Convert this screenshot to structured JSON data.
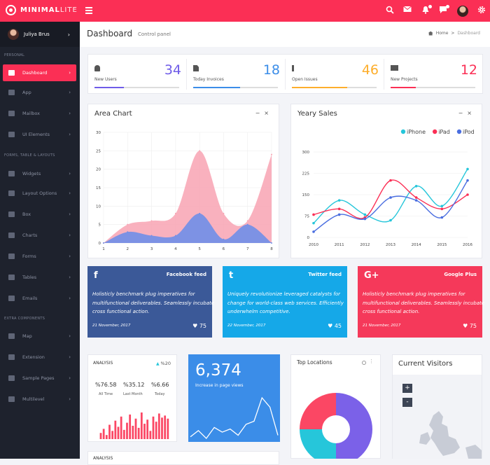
{
  "app": {
    "brand_strong": "MINIMAL",
    "brand_light": "LITE"
  },
  "topbar": {
    "icons": [
      "search-icon",
      "mail-icon",
      "bell-icon",
      "chat-icon",
      "avatar",
      "gear-icon"
    ]
  },
  "sidebar": {
    "user_name": "Juliya Brus",
    "sections": [
      "PERSONAL",
      "FORMS, TABLE & LAYOUTS",
      "EXTRA COMPONENTS"
    ],
    "items": [
      {
        "label": "Dashboard",
        "icon": "dashboard-icon",
        "active": true
      },
      {
        "label": "App",
        "icon": "grid-icon"
      },
      {
        "label": "Mailbox",
        "icon": "mail-icon"
      },
      {
        "label": "UI Elements",
        "icon": "monitor-icon"
      },
      {
        "label": "Widgets",
        "icon": "list-icon"
      },
      {
        "label": "Layout Options",
        "icon": "layout-icon"
      },
      {
        "label": "Box",
        "icon": "box-icon"
      },
      {
        "label": "Charts",
        "icon": "pie-icon"
      },
      {
        "label": "Forms",
        "icon": "edit-icon"
      },
      {
        "label": "Tables",
        "icon": "table-icon"
      },
      {
        "label": "Emails",
        "icon": "envelope-icon"
      },
      {
        "label": "Map",
        "icon": "map-icon"
      },
      {
        "label": "Extension",
        "icon": "plug-icon"
      },
      {
        "label": "Sample Pages",
        "icon": "file-icon"
      },
      {
        "label": "Multilevel",
        "icon": "share-icon"
      }
    ]
  },
  "header": {
    "title": "Dashboard",
    "subtitle": "Control panel",
    "breadcrumb_home": "Home",
    "breadcrumb_current": "Dashboard"
  },
  "stats": [
    {
      "label": "New Users",
      "value": "34",
      "color": "#6f5ce8",
      "progress": 0.35
    },
    {
      "label": "Today Invoices",
      "value": "18",
      "color": "#3b8de8",
      "progress": 0.55
    },
    {
      "label": "Open Issues",
      "value": "46",
      "color": "#fdae2c",
      "progress": 0.65
    },
    {
      "label": "New Projects",
      "value": "12",
      "color": "#fb2f55",
      "progress": 0.3
    }
  ],
  "area_chart_title": "Area Chart",
  "sales_chart_title": "Yeary Sales",
  "chart_data": [
    {
      "type": "area",
      "x": [
        1,
        2,
        3,
        4,
        5,
        6,
        7,
        8
      ],
      "ylim": [
        0,
        30
      ],
      "yticks": [
        0,
        5,
        10,
        15,
        20,
        25,
        30
      ],
      "series": [
        {
          "color": "#f8a3b3",
          "values": [
            0,
            5,
            6,
            8,
            25,
            8,
            6,
            24
          ]
        },
        {
          "color": "#6f8fe8",
          "values": [
            0,
            3,
            2,
            2,
            8,
            1,
            5,
            0
          ]
        }
      ]
    },
    {
      "type": "line",
      "x": [
        "2010",
        "2011",
        "2012",
        "2013",
        "2014",
        "2015",
        "2016"
      ],
      "ylim": [
        0,
        300
      ],
      "yticks": [
        0,
        75,
        150,
        225,
        300
      ],
      "series": [
        {
          "name": "iPhone",
          "color": "#26c6da",
          "values": [
            50,
            130,
            80,
            60,
            180,
            110,
            240
          ]
        },
        {
          "name": "iPad",
          "color": "#fb2f55",
          "values": [
            80,
            100,
            70,
            200,
            140,
            100,
            150
          ]
        },
        {
          "name": "iPod",
          "color": "#4a6ee0",
          "values": [
            20,
            80,
            65,
            140,
            130,
            70,
            200
          ]
        }
      ]
    }
  ],
  "social": [
    {
      "name": "Facebook feed",
      "logo": "f",
      "color": "#3b5998",
      "text": "Holisticly benchmark plug imperatives for multifunctional deliverables. Seamlessly incubate cross functional action.",
      "date": "21 November, 2017",
      "likes": "75"
    },
    {
      "name": "Twitter feed",
      "logo": "t",
      "color": "#15a8e8",
      "text": "Uniquely revolutionize leveraged catalysts for change for world-class web services. Efficiently underwhelm competitive.",
      "date": "22 November, 2017",
      "likes": "45"
    },
    {
      "name": "Google Plus",
      "logo": "G+",
      "color": "#f5395a",
      "text": "Holisticly benchmark plug imperatives for multifunctional deliverables. Seamlessly incubate cross functional action.",
      "date": "21 November, 2017",
      "likes": "75"
    }
  ],
  "analysis": {
    "title": "ANALYSIS",
    "change": "%20",
    "all_time": "%76.58",
    "all_time_label": "All Time",
    "last_month": "%35.12",
    "last_month_label": "Last Month",
    "today": "%6.66",
    "today_label": "Today",
    "bars": [
      6,
      10,
      4,
      14,
      8,
      18,
      12,
      22,
      9,
      16,
      24,
      13,
      20,
      11,
      26,
      15,
      19,
      8,
      22,
      17,
      25,
      21,
      23,
      20
    ],
    "footer_title": "ANALYSIS"
  },
  "pageviews": {
    "value": "6,374",
    "label": "Increase in page views",
    "line": [
      20,
      28,
      18,
      32,
      26,
      30,
      22,
      36,
      40,
      70,
      58,
      22
    ]
  },
  "locations": {
    "title": "Top Locations",
    "slices": [
      {
        "color": "#7b61e8",
        "value": 50
      },
      {
        "color": "#26c6da",
        "value": 25
      },
      {
        "color": "#fb4764",
        "value": 25
      }
    ]
  },
  "visitors": {
    "title": "Current Visitors",
    "zoom_in": "+",
    "zoom_out": "-"
  }
}
